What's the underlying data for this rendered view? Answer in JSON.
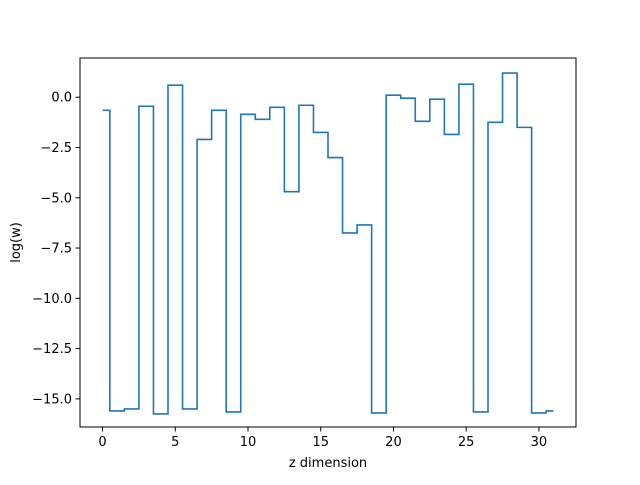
{
  "chart_data": {
    "type": "line",
    "drawstyle": "steps-mid",
    "title": "",
    "xlabel": "z dimension",
    "ylabel": "log(w)",
    "xlim": [
      -1.55,
      32.55
    ],
    "ylim": [
      -16.4,
      1.95
    ],
    "xticks": [
      0,
      5,
      10,
      15,
      20,
      25,
      30
    ],
    "xtick_labels": [
      "0",
      "5",
      "10",
      "15",
      "20",
      "25",
      "30"
    ],
    "yticks": [
      0.0,
      -2.5,
      -5.0,
      -7.5,
      -10.0,
      -12.5,
      -15.0
    ],
    "ytick_labels": [
      "0.0",
      "−2.5",
      "−5.0",
      "−7.5",
      "−10.0",
      "−12.5",
      "−15.0"
    ],
    "grid": false,
    "color": "#1f77b4",
    "series": [
      {
        "x": [
          0,
          1,
          2,
          3,
          4,
          5,
          6,
          7,
          8,
          9,
          10,
          11,
          12,
          13,
          14,
          15,
          16,
          17,
          18,
          19,
          20,
          21,
          22,
          23,
          24,
          25,
          26,
          27,
          28,
          29,
          30,
          31
        ],
        "y": [
          -0.65,
          -15.6,
          -15.5,
          -0.45,
          -15.75,
          0.6,
          -15.5,
          -2.1,
          -0.65,
          -15.65,
          -0.85,
          -1.1,
          -0.5,
          -4.7,
          -0.4,
          -1.75,
          -3.0,
          -6.75,
          -6.35,
          -15.7,
          0.1,
          -0.05,
          -1.2,
          -0.1,
          -1.85,
          0.65,
          -15.65,
          -1.25,
          1.2,
          -1.5,
          -15.7,
          -15.6
        ]
      }
    ]
  }
}
